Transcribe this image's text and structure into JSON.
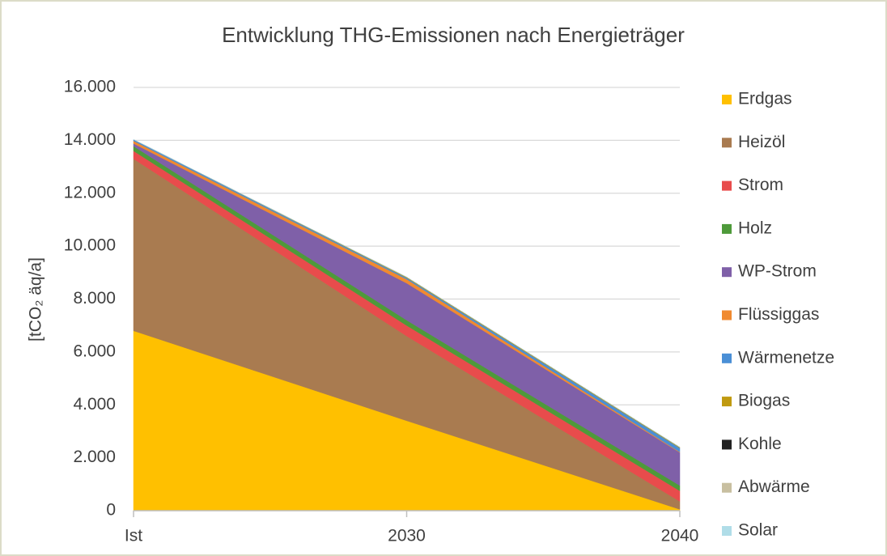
{
  "chart_data": {
    "type": "area",
    "stacked": true,
    "title": "Entwicklung THG-Emissionen nach Energieträger",
    "y_label": "[tCO₂ äq/a]",
    "categories": [
      "Ist",
      "2030",
      "2040"
    ],
    "series": [
      {
        "name": "Erdgas",
        "color": "#ffc000",
        "values": [
          6800,
          3400,
          50
        ]
      },
      {
        "name": "Heizöl",
        "color": "#a97b50",
        "values": [
          6500,
          3200,
          300
        ]
      },
      {
        "name": "Strom",
        "color": "#e84c4c",
        "values": [
          300,
          400,
          400
        ]
      },
      {
        "name": "Holz",
        "color": "#4e9a3a",
        "values": [
          180,
          200,
          200
        ]
      },
      {
        "name": "WP-Strom",
        "color": "#7f60a8",
        "values": [
          100,
          1400,
          1250
        ]
      },
      {
        "name": "Flüssiggas",
        "color": "#f08a30",
        "values": [
          100,
          150,
          20
        ]
      },
      {
        "name": "Wärmenetze",
        "color": "#4a8fd6",
        "values": [
          50,
          50,
          150
        ]
      },
      {
        "name": "Biogas",
        "color": "#c09a10",
        "values": [
          0,
          30,
          30
        ]
      },
      {
        "name": "Kohle",
        "color": "#222222",
        "values": [
          0,
          0,
          0
        ]
      },
      {
        "name": "Abwärme",
        "color": "#c8bfa0",
        "values": [
          0,
          0,
          0
        ]
      },
      {
        "name": "Solar",
        "color": "#b0dde8",
        "values": [
          0,
          0,
          0
        ]
      }
    ],
    "ylim": [
      0,
      16000
    ],
    "yticks": [
      0,
      {
        "value": 2000,
        "label": "2.000"
      },
      {
        "value": 4000,
        "label": "4.000"
      },
      {
        "value": 6000,
        "label": "6.000"
      },
      {
        "value": 8000,
        "label": "8.000"
      },
      {
        "value": 10000,
        "label": "10.000"
      },
      {
        "value": 12000,
        "label": "12.000"
      },
      {
        "value": 14000,
        "label": "14.000"
      },
      {
        "value": 16000,
        "label": "16.000"
      }
    ],
    "grid": true,
    "legend": "right"
  }
}
